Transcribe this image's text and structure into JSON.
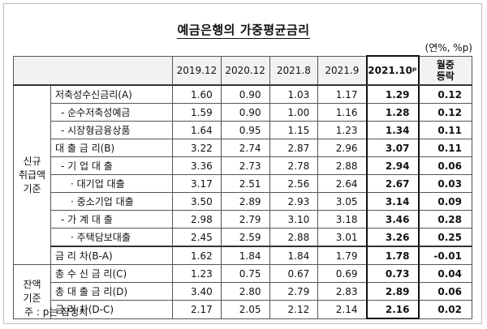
{
  "title": "예금은행의 가중평균금리",
  "unit": "(연%, %p)",
  "headers": [
    "2019.12",
    "2020.12",
    "2021.8",
    "2021.9",
    "2021.10ᵖ",
    "월중\n등락"
  ],
  "groups": [
    {
      "label": "신규\n취급액\n기준",
      "rows": [
        {
          "label": "저축성수신금리(A)",
          "level": 0,
          "values": [
            "1.60",
            "0.90",
            "1.03",
            "1.17",
            "1.29",
            "0.12"
          ]
        },
        {
          "label": "- 순수저축성예금",
          "level": 1,
          "values": [
            "1.59",
            "0.90",
            "1.00",
            "1.16",
            "1.28",
            "0.12"
          ]
        },
        {
          "label": "- 시장형금융상품",
          "level": 1,
          "values": [
            "1.64",
            "0.95",
            "1.15",
            "1.23",
            "1.34",
            "0.11"
          ]
        },
        {
          "label": "대 출 금 리(B)",
          "level": 0,
          "values": [
            "3.22",
            "2.74",
            "2.87",
            "2.96",
            "3.07",
            "0.11"
          ]
        },
        {
          "label": "- 기 업 대 출",
          "level": 1,
          "values": [
            "3.36",
            "2.73",
            "2.78",
            "2.88",
            "2.94",
            "0.06"
          ]
        },
        {
          "label": "· 대기업 대출",
          "level": 2,
          "values": [
            "3.17",
            "2.51",
            "2.56",
            "2.64",
            "2.67",
            "0.03"
          ]
        },
        {
          "label": "· 중소기업 대출",
          "level": 2,
          "values": [
            "3.50",
            "2.89",
            "2.93",
            "3.05",
            "3.14",
            "0.09"
          ]
        },
        {
          "label": "- 가 계 대 출",
          "level": 1,
          "values": [
            "2.98",
            "2.79",
            "3.10",
            "3.18",
            "3.46",
            "0.28"
          ]
        },
        {
          "label": "· 주택담보대출",
          "level": 2,
          "values": [
            "2.45",
            "2.59",
            "2.88",
            "3.01",
            "3.26",
            "0.25"
          ]
        },
        {
          "label": "금 리 차(B-A)",
          "level": 0,
          "values": [
            "1.62",
            "1.84",
            "1.84",
            "1.79",
            "1.78",
            "-0.01"
          ]
        }
      ]
    },
    {
      "label": "잔액\n기준",
      "rows": [
        {
          "label": "총 수 신 금 리(C)",
          "level": 0,
          "values": [
            "1.23",
            "0.75",
            "0.67",
            "0.69",
            "0.73",
            "0.04"
          ]
        },
        {
          "label": "총 대 출 금 리(D)",
          "level": 0,
          "values": [
            "3.40",
            "2.80",
            "2.79",
            "2.83",
            "2.89",
            "0.06"
          ]
        },
        {
          "label": "금 리 차(D-C)",
          "level": 0,
          "values": [
            "2.17",
            "2.05",
            "2.12",
            "2.14",
            "2.16",
            "0.02"
          ]
        }
      ]
    }
  ],
  "note": "주 : p는 잠정치"
}
